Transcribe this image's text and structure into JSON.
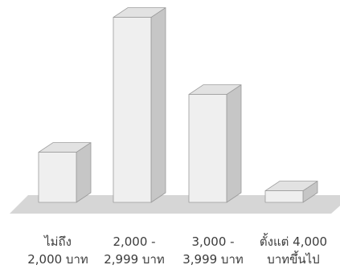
{
  "chart_data": {
    "type": "bar",
    "style": "3d-columns",
    "title": "",
    "xlabel": "",
    "ylabel": "",
    "categories": [
      [
        "ไม่ถึง",
        "2,000 บาท"
      ],
      [
        "2,000 -",
        "2,999 บาท"
      ],
      [
        "3,000 -",
        "3,999 บาท"
      ],
      [
        "ตั้งแต่ 4,000",
        "บาทขึ้นไป"
      ]
    ],
    "values": [
      13,
      48,
      28,
      3
    ],
    "ylim": [
      0,
      50
    ],
    "grid": false,
    "legend": "none",
    "colors": {
      "front": "#efefef",
      "side": "#c6c6c6",
      "top": "#e2e2e2",
      "floor": "#d6d6d6",
      "stroke": "#9a9a9a"
    }
  }
}
